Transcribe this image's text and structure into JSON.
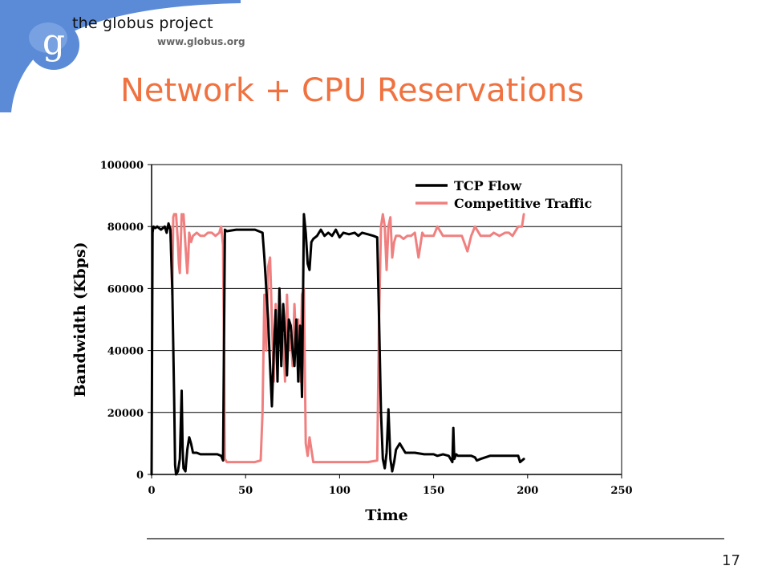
{
  "slide": {
    "brand": "the globus project",
    "url": "www.globus.org",
    "logo_letter": "g",
    "title": "Network + CPU Reservations",
    "page_number": "17",
    "accent_color": "#f07240",
    "logo_color": "#5b8bd6"
  },
  "chart_data": {
    "type": "line",
    "title": "",
    "xlabel": "Time",
    "ylabel": "Bandwidth (Kbps)",
    "xlim": [
      0,
      250
    ],
    "ylim": [
      0,
      100000
    ],
    "xticks": [
      0,
      50,
      100,
      150,
      200,
      250
    ],
    "yticks": [
      0,
      20000,
      40000,
      60000,
      80000,
      100000
    ],
    "ytick_labels": [
      "0",
      "20000",
      "40000",
      "60000",
      "80000",
      "100000"
    ],
    "grid": "horizontal",
    "legend_position": "top-right",
    "series": [
      {
        "name": "TCP Flow",
        "color": "#000000",
        "x": [
          0,
          0.5,
          1,
          2,
          3,
          5,
          7,
          8,
          9,
          10,
          11,
          12,
          12.5,
          13,
          14,
          15,
          16,
          16.5,
          17,
          18,
          19,
          20,
          21,
          22,
          24,
          26,
          30,
          35,
          37,
          38,
          39,
          40,
          45,
          50,
          55,
          59,
          60,
          62,
          63,
          64,
          65,
          66,
          67,
          68,
          69,
          70,
          71,
          72,
          73,
          74,
          75,
          76,
          77,
          78,
          79,
          80,
          81,
          82,
          83,
          84,
          85,
          86,
          88,
          90,
          92,
          94,
          96,
          98,
          100,
          102,
          105,
          108,
          110,
          112,
          115,
          118,
          120,
          121,
          122,
          123,
          124,
          125,
          126,
          127,
          128,
          129,
          130,
          132,
          135,
          140,
          145,
          150,
          152,
          155,
          158,
          160,
          160.5,
          161,
          162,
          163,
          165,
          170,
          172,
          173,
          175,
          180,
          185,
          190,
          195,
          196,
          197,
          198
        ],
        "y": [
          0,
          78000,
          80000,
          79500,
          80000,
          79000,
          80000,
          78000,
          81000,
          79000,
          60000,
          25000,
          3000,
          0,
          1000,
          5000,
          27000,
          8000,
          2000,
          1000,
          8000,
          12000,
          10000,
          7000,
          7000,
          6500,
          6500,
          6500,
          6000,
          4500,
          79000,
          78500,
          79000,
          79000,
          79000,
          78000,
          70000,
          50000,
          35000,
          22000,
          40000,
          53000,
          30000,
          60000,
          35000,
          55000,
          45000,
          32000,
          50000,
          48000,
          40000,
          35000,
          50000,
          30000,
          48000,
          25000,
          84000,
          78000,
          68000,
          66000,
          75000,
          76000,
          77000,
          79000,
          77000,
          78000,
          77000,
          79000,
          76500,
          78000,
          77500,
          78000,
          77000,
          78000,
          77500,
          77000,
          76500,
          50000,
          20000,
          5000,
          2000,
          7000,
          21000,
          5000,
          1000,
          4000,
          8000,
          10000,
          7000,
          7000,
          6500,
          6500,
          6000,
          6500,
          6000,
          4000,
          15000,
          5000,
          6500,
          6000,
          6000,
          6000,
          5500,
          4500,
          5000,
          6000,
          6000,
          6000,
          6000,
          4000,
          4500,
          5000
        ]
      },
      {
        "name": "Competitive Traffic",
        "color": "#f08080",
        "x": [
          10,
          11,
          11.5,
          12,
          13,
          14,
          14.5,
          15,
          16,
          16.5,
          17,
          18,
          19,
          19.5,
          20,
          21,
          22,
          24,
          26,
          28,
          30,
          32,
          34,
          36,
          37,
          38,
          39,
          40,
          45,
          50,
          55,
          58,
          59,
          60,
          61,
          62,
          63,
          64,
          65,
          66,
          67,
          68,
          69,
          70,
          71,
          72,
          73,
          74,
          75,
          76,
          77,
          78,
          79,
          80,
          81,
          82,
          83,
          84,
          86,
          90,
          95,
          100,
          105,
          110,
          115,
          120,
          121,
          122,
          123,
          124,
          125,
          126,
          127,
          128,
          129,
          130,
          132,
          134,
          136,
          138,
          140,
          142,
          144,
          145,
          150,
          152,
          155,
          158,
          160,
          162,
          165,
          168,
          170,
          172,
          175,
          178,
          180,
          182,
          185,
          188,
          190,
          192,
          195,
          197,
          198
        ],
        "y": [
          80000,
          58000,
          83000,
          84000,
          84000,
          75000,
          68000,
          65000,
          84000,
          83000,
          84000,
          74000,
          65000,
          70000,
          78000,
          75000,
          77000,
          78000,
          77000,
          77000,
          78000,
          78000,
          77000,
          78000,
          80000,
          74000,
          5000,
          4000,
          4000,
          4000,
          4000,
          4500,
          20000,
          58000,
          40000,
          67000,
          70000,
          50000,
          30000,
          55000,
          35000,
          60000,
          40000,
          45000,
          30000,
          58000,
          40000,
          45000,
          35000,
          55000,
          40000,
          50000,
          30000,
          58000,
          60000,
          10000,
          6000,
          12000,
          4000,
          4000,
          4000,
          4000,
          4000,
          4000,
          4000,
          4500,
          50000,
          80000,
          84000,
          80000,
          66000,
          80000,
          83000,
          70000,
          75000,
          77000,
          77000,
          76000,
          77000,
          77000,
          78000,
          70000,
          78000,
          77000,
          77000,
          80000,
          77000,
          77000,
          77000,
          77000,
          77000,
          72000,
          77000,
          80000,
          77000,
          77000,
          77000,
          78000,
          77000,
          78000,
          78000,
          77000,
          80000,
          80000,
          84000
        ]
      }
    ]
  }
}
